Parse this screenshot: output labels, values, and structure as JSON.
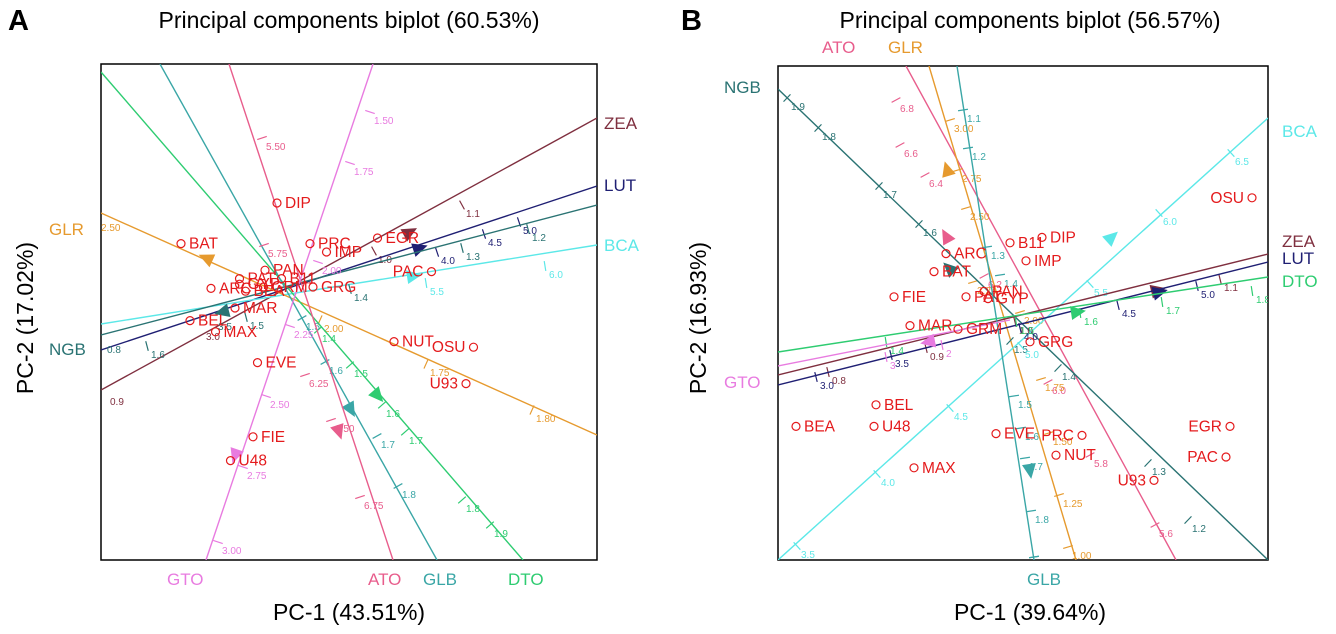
{
  "chart_data": [
    {
      "type": "scatter",
      "panel": "A",
      "title": "Principal components biplot (60.53%)",
      "xlabel": "PC-1  (43.51%)",
      "ylabel": "PC-2  (17.02%)",
      "genotypes": [
        {
          "name": "DIP",
          "x": -0.08,
          "y": 0.65
        },
        {
          "name": "BAT",
          "x": -0.72,
          "y": 0.36
        },
        {
          "name": "PRC",
          "x": 0.14,
          "y": 0.36
        },
        {
          "name": "IMP",
          "x": 0.25,
          "y": 0.3
        },
        {
          "name": "EGR",
          "x": 0.59,
          "y": 0.4
        },
        {
          "name": "PAN",
          "x": -0.16,
          "y": 0.17
        },
        {
          "name": "PAT",
          "x": -0.33,
          "y": 0.11
        },
        {
          "name": "B11",
          "x": -0.05,
          "y": 0.11
        },
        {
          "name": "GYP",
          "x": -0.33,
          "y": 0.07
        },
        {
          "name": "GRM",
          "x": -0.17,
          "y": 0.05
        },
        {
          "name": "GRG",
          "x": 0.16,
          "y": 0.05
        },
        {
          "name": "BEA",
          "x": -0.29,
          "y": 0.02
        },
        {
          "name": "ARC",
          "x": -0.52,
          "y": 0.04
        },
        {
          "name": "MAR",
          "x": -0.36,
          "y": -0.1
        },
        {
          "name": "BEL",
          "x": -0.66,
          "y": -0.19
        },
        {
          "name": "MAX",
          "x": -0.49,
          "y": -0.27
        },
        {
          "name": "PAC",
          "x": 0.95,
          "y": 0.16
        },
        {
          "name": "NUT",
          "x": 0.7,
          "y": -0.34
        },
        {
          "name": "OSU",
          "x": 1.23,
          "y": -0.38
        },
        {
          "name": "EVE",
          "x": -0.21,
          "y": -0.49
        },
        {
          "name": "U93",
          "x": 1.18,
          "y": -0.64
        },
        {
          "name": "FIE",
          "x": -0.24,
          "y": -1.02
        },
        {
          "name": "U48",
          "x": -0.39,
          "y": -1.19
        }
      ],
      "variables": [
        {
          "name": "ZEA",
          "color": "#7f2f3f",
          "end_label": "ZEA",
          "ticks": [
            "1.0",
            "1.1"
          ]
        },
        {
          "name": "LUT",
          "color": "#1f1f73",
          "end_label": "LUT",
          "ticks": [
            "4.0",
            "4.5",
            "5.0"
          ]
        },
        {
          "name": "BCA",
          "color": "#5ce8e8",
          "end_label": "BCA",
          "ticks": [
            "5.5",
            "6.0"
          ]
        },
        {
          "name": "NGB",
          "color": "#2a7373",
          "end_label": "NGB",
          "ticks": [
            "1.2",
            "1.3",
            "1.4",
            "1.5",
            "1.6"
          ]
        },
        {
          "name": "GLR",
          "color": "#e69a2e",
          "end_label": "GLR",
          "ticks": [
            "1.75",
            "1.80",
            "2.00",
            "2.50"
          ]
        },
        {
          "name": "DTO",
          "color": "#2ecc71",
          "end_label": "DTO",
          "ticks": [
            "1.4",
            "1.5",
            "1.6",
            "1.7",
            "1.8",
            "1.9"
          ]
        },
        {
          "name": "GLB",
          "color": "#3aa6a6",
          "end_label": "GLB",
          "ticks": [
            "1.5",
            "1.6",
            "1.7",
            "1.8"
          ]
        },
        {
          "name": "ATO",
          "color": "#e85d8c",
          "end_label": "ATO",
          "ticks": [
            "5.50",
            "5.75",
            "6.25",
            "6.50",
            "6.75"
          ]
        },
        {
          "name": "GTO",
          "color": "#e87be0",
          "end_label": "GTO",
          "ticks": [
            "1.50",
            "1.75",
            "2.00",
            "2.25",
            "2.50",
            "2.75",
            "3.00"
          ]
        }
      ],
      "extra_tick_labels": [
        "0.8",
        "0.9",
        "3.0",
        "3.5"
      ]
    },
    {
      "type": "scatter",
      "panel": "B",
      "title": "Principal components biplot (56.57%)",
      "xlabel": "PC-1  (39.64%)",
      "ylabel": "PC-2  (16.93%)",
      "genotypes": [
        {
          "name": "OSU",
          "x": 1.23,
          "y": 0.69
        },
        {
          "name": "B11",
          "x": 0.02,
          "y": 0.44
        },
        {
          "name": "DIP",
          "x": 0.18,
          "y": 0.47
        },
        {
          "name": "IMP",
          "x": 0.1,
          "y": 0.34
        },
        {
          "name": "ARC",
          "x": -0.3,
          "y": 0.38
        },
        {
          "name": "BAT",
          "x": -0.36,
          "y": 0.28
        },
        {
          "name": "PAN",
          "x": -0.11,
          "y": 0.17
        },
        {
          "name": "PAT",
          "x": -0.2,
          "y": 0.14
        },
        {
          "name": "GYP",
          "x": -0.09,
          "y": 0.13
        },
        {
          "name": "FIE",
          "x": -0.56,
          "y": 0.14
        },
        {
          "name": "MAR",
          "x": -0.48,
          "y": -0.02
        },
        {
          "name": "GRM",
          "x": -0.24,
          "y": -0.04
        },
        {
          "name": "GRG",
          "x": 0.12,
          "y": -0.11
        },
        {
          "name": "BEL",
          "x": -0.65,
          "y": -0.46
        },
        {
          "name": "BEA",
          "x": -1.05,
          "y": -0.58
        },
        {
          "name": "U48",
          "x": -0.66,
          "y": -0.58
        },
        {
          "name": "MAX",
          "x": -0.46,
          "y": -0.81
        },
        {
          "name": "EVE",
          "x": -0.05,
          "y": -0.62
        },
        {
          "name": "PRC",
          "x": 0.38,
          "y": -0.63
        },
        {
          "name": "NUT",
          "x": 0.25,
          "y": -0.74
        },
        {
          "name": "EGR",
          "x": 1.12,
          "y": -0.58
        },
        {
          "name": "PAC",
          "x": 1.1,
          "y": -0.75
        },
        {
          "name": "U93",
          "x": 0.74,
          "y": -0.88
        }
      ],
      "variables": [
        {
          "name": "ATO",
          "color": "#e85d8c",
          "end_label": "ATO",
          "ticks": [
            "5.6",
            "5.8",
            "6.0",
            "6.2",
            "6.4",
            "6.6",
            "6.8"
          ]
        },
        {
          "name": "GLR",
          "color": "#e69a2e",
          "end_label": "GLR",
          "ticks": [
            "1.00",
            "1.25",
            "1.50",
            "1.75",
            "2.00",
            "2.25",
            "2.50",
            "2.75",
            "3.00"
          ]
        },
        {
          "name": "NGB",
          "color": "#2a7373",
          "end_label": "NGB",
          "ticks": [
            "1.2",
            "1.3",
            "1.4",
            "1.5",
            "1.6",
            "1.7",
            "1.8",
            "1.9"
          ]
        },
        {
          "name": "BCA",
          "color": "#5ce8e8",
          "end_label": "BCA",
          "ticks": [
            "3.5",
            "4.0",
            "4.5",
            "5.0",
            "5.5",
            "6.0",
            "6.5"
          ]
        },
        {
          "name": "ZEA",
          "color": "#7f2f3f",
          "end_label": "ZEA",
          "ticks": [
            "0.8",
            "0.9",
            "1.0",
            "1.1"
          ]
        },
        {
          "name": "LUT",
          "color": "#1f1f73",
          "end_label": "LUT",
          "ticks": [
            "3.0",
            "3.5",
            "4.0",
            "4.5",
            "5.0"
          ]
        },
        {
          "name": "DTO",
          "color": "#2ecc71",
          "end_label": "DTO",
          "ticks": [
            "1.4",
            "1.5",
            "1.6",
            "1.7",
            "1.8"
          ]
        },
        {
          "name": "GLB",
          "color": "#3aa6a6",
          "end_label": "GLB",
          "ticks": [
            "1.1",
            "1.2",
            "1.3",
            "1.4",
            "1.5",
            "1.6",
            "1.7",
            "1.8",
            "1.9",
            "2.0"
          ]
        },
        {
          "name": "GTO",
          "color": "#e87be0",
          "end_label": "GTO",
          "ticks": [
            "2",
            "3"
          ]
        }
      ]
    }
  ]
}
